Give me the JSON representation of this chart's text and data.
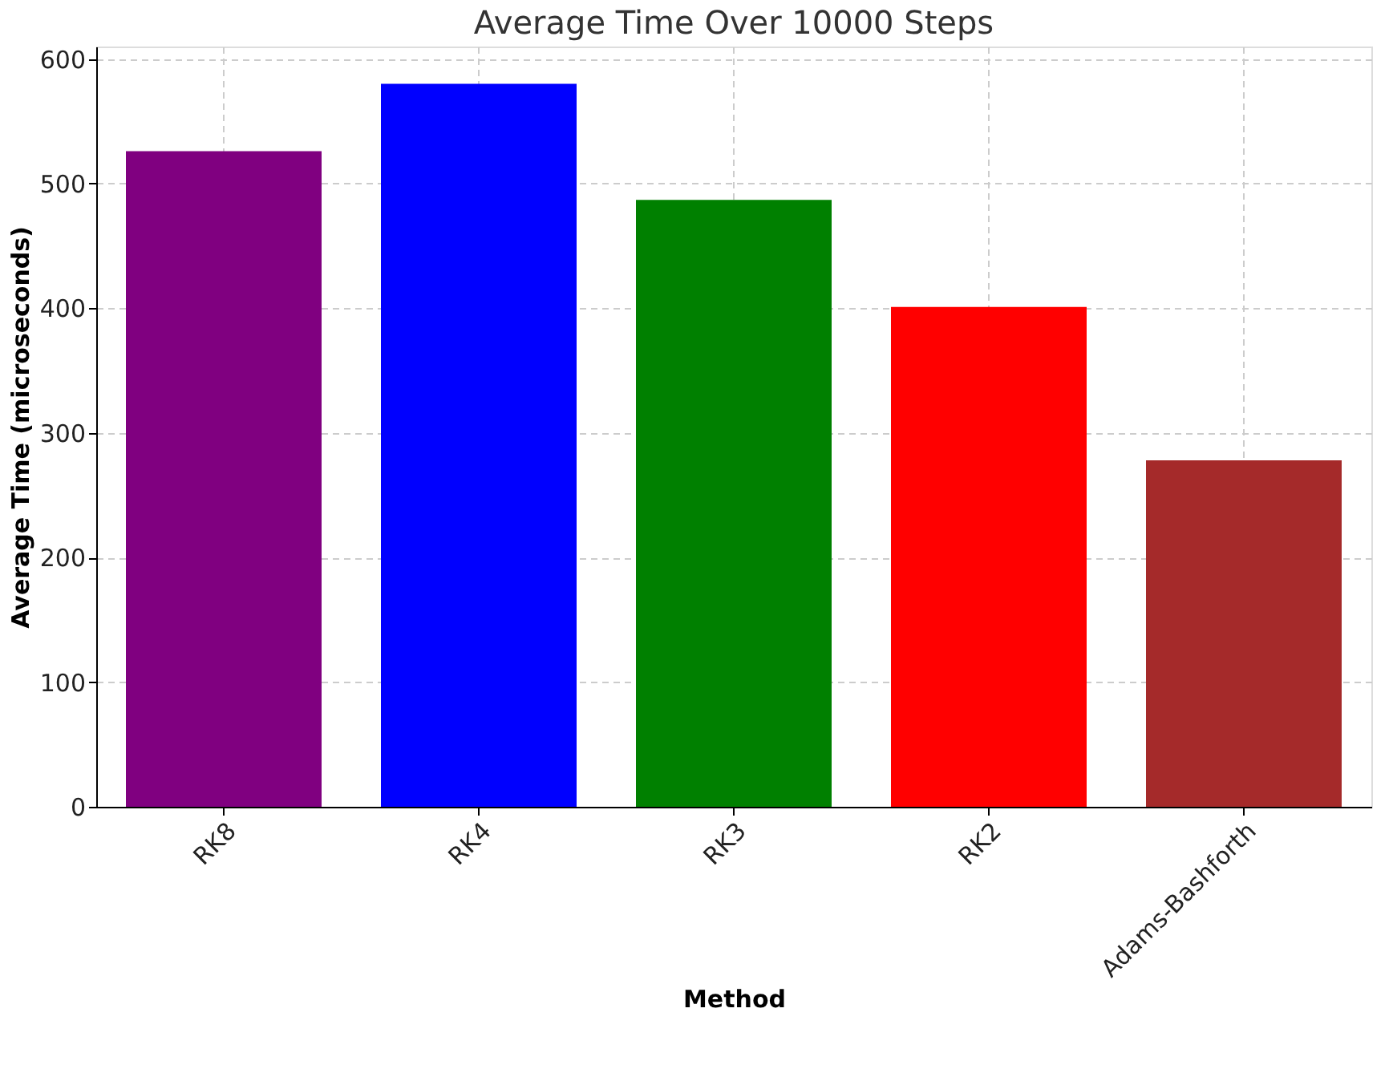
{
  "chart_data": {
    "type": "bar",
    "title": "Average Time Over 10000 Steps",
    "xlabel": "Method",
    "ylabel": "Average Time (microseconds)",
    "categories": [
      "RK8",
      "RK4",
      "RK3",
      "RK2",
      "Adams-Bashforth"
    ],
    "values": [
      526,
      580,
      487,
      401,
      278
    ],
    "colors": [
      "#800080",
      "#0000ff",
      "#008000",
      "#ff0000",
      "#a52a2a"
    ],
    "ylim": [
      0,
      610
    ],
    "yticks": [
      0,
      100,
      200,
      300,
      400,
      500,
      600
    ],
    "grid": true
  }
}
